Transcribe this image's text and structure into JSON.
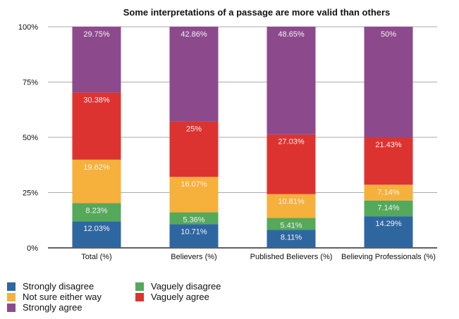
{
  "chart_data": {
    "type": "bar",
    "stacked": true,
    "title": "Some interpretations of a passage are more valid than others",
    "categories": [
      "Total (%)",
      "Believers (%)",
      "Published Believers (%)",
      "Believing Professionals (%)"
    ],
    "ylim": [
      0,
      100
    ],
    "yticks": [
      "0%",
      "25%",
      "50%",
      "75%",
      "100%"
    ],
    "ytick_values": [
      0,
      25,
      50,
      75,
      100
    ],
    "grid": true,
    "legend_position": "bottom",
    "series": [
      {
        "name": "Strongly disagree",
        "color": "#2e67a0",
        "values": [
          12.03,
          10.71,
          8.11,
          14.29
        ],
        "labels": [
          "12.03%",
          "10.71%",
          "8.11%",
          "14.29%"
        ]
      },
      {
        "name": "Vaguely disagree",
        "color": "#54a95a",
        "values": [
          8.23,
          5.36,
          5.41,
          7.14
        ],
        "labels": [
          "8.23%",
          "5.36%",
          "5.41%",
          "7.14%"
        ]
      },
      {
        "name": "Not sure either way",
        "color": "#f6b03c",
        "values": [
          19.62,
          16.07,
          10.81,
          7.14
        ],
        "labels": [
          "19.62%",
          "16.07%",
          "10.81%",
          "7.14%"
        ]
      },
      {
        "name": "Vaguely agree",
        "color": "#dd3330",
        "values": [
          30.38,
          25,
          27.03,
          21.43
        ],
        "labels": [
          "30.38%",
          "25%",
          "27.03%",
          "21.43%"
        ]
      },
      {
        "name": "Strongly agree",
        "color": "#8c4a8d",
        "values": [
          29.75,
          42.86,
          48.65,
          50
        ],
        "labels": [
          "29.75%",
          "42.86%",
          "48.65%",
          "50%"
        ]
      }
    ]
  }
}
